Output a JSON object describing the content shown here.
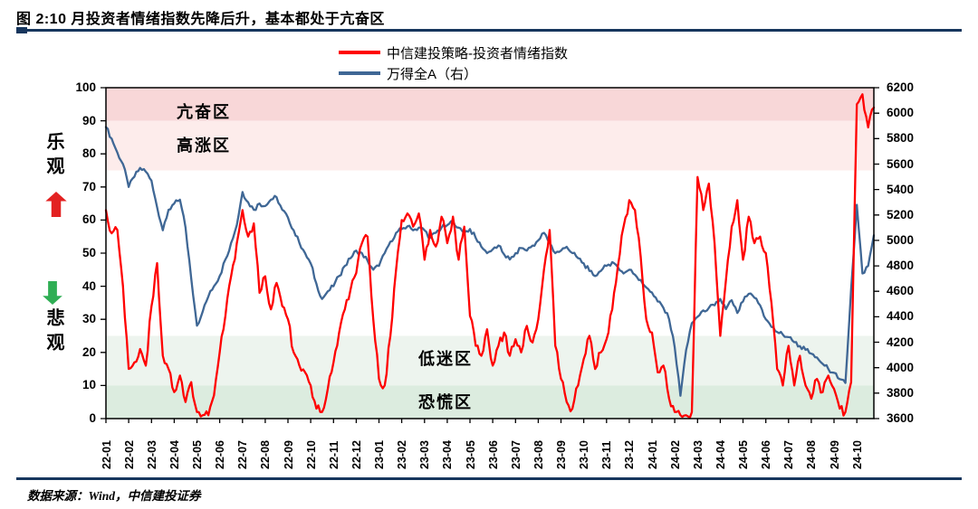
{
  "header": {
    "title": "图 2:10 月投资者情绪指数先降后升，基本都处于亢奋区"
  },
  "legend": [
    {
      "label": "中信建投策略-投资者情绪指数",
      "color": "#ff0000"
    },
    {
      "label": "万得全A（右）",
      "color": "#3f6795"
    }
  ],
  "side_labels": {
    "optimistic": "乐观",
    "pessimistic": "悲观"
  },
  "colors": {
    "rule": "#17365d",
    "optimistic_arrow": "#e32222",
    "pessimistic_arrow": "#2fae54",
    "axis": "#000000"
  },
  "footer": {
    "source": "数据来源：Wind，中信建投证券"
  },
  "chart_data": {
    "type": "line",
    "title": "图 2:10 月投资者情绪指数先降后升，基本都处于亢奋区",
    "points_per_month": 4,
    "legend_position": "top-center",
    "grid": false,
    "x_labels": [
      "22-01",
      "22-02",
      "22-03",
      "22-04",
      "22-05",
      "22-06",
      "22-07",
      "22-08",
      "22-09",
      "22-10",
      "22-11",
      "22-12",
      "23-01",
      "23-02",
      "23-03",
      "23-04",
      "23-05",
      "23-06",
      "23-07",
      "23-08",
      "23-09",
      "23-10",
      "23-11",
      "23-12",
      "24-01",
      "24-02",
      "24-03",
      "24-04",
      "24-05",
      "24-06",
      "24-07",
      "24-08",
      "24-09",
      "24-10"
    ],
    "y_left": {
      "min": 0,
      "max": 100,
      "step": 10,
      "ticks": [
        0,
        10,
        20,
        30,
        40,
        50,
        60,
        70,
        80,
        90,
        100
      ]
    },
    "y_right": {
      "min": 3600,
      "max": 6200,
      "step": 200,
      "ticks": [
        3600,
        3800,
        4000,
        4200,
        4400,
        4600,
        4800,
        5000,
        5200,
        5400,
        5600,
        5800,
        6000,
        6200
      ]
    },
    "zones": [
      {
        "label": "亢奋区",
        "from": 90,
        "to": 100,
        "color": "#f8d7d8"
      },
      {
        "label": "高涨区",
        "from": 75,
        "to": 90,
        "color": "#fdeceb"
      },
      {
        "label": "低迷区",
        "from": 10,
        "to": 25,
        "color": "#edf4ee"
      },
      {
        "label": "恐慌区",
        "from": 0,
        "to": 10,
        "color": "#dcecdf"
      }
    ],
    "series": [
      {
        "name": "中信建投策略-投资者情绪指数",
        "axis": "left",
        "color": "#ff0000",
        "values": [
          63,
          56,
          57,
          40,
          15,
          17,
          21,
          16,
          34,
          47,
          19,
          15,
          8,
          13,
          5,
          11,
          2,
          1,
          1,
          7,
          20,
          31,
          43,
          53,
          63,
          55,
          59,
          38,
          43,
          33,
          41,
          34,
          30,
          20,
          16,
          14,
          10,
          3,
          2,
          9,
          17,
          26,
          33,
          39,
          44,
          53,
          55,
          30,
          12,
          10,
          25,
          45,
          60,
          62,
          58,
          62,
          48,
          57,
          52,
          61,
          53,
          61,
          48,
          58,
          31,
          22,
          19,
          27,
          16,
          22,
          26,
          19,
          24,
          20,
          28,
          23,
          30,
          45,
          57,
          22,
          12,
          5,
          3,
          10,
          18,
          25,
          15,
          20,
          24,
          33,
          46,
          58,
          66,
          63,
          49,
          30,
          26,
          14,
          16,
          6,
          2,
          1,
          1,
          2,
          73,
          63,
          71,
          53,
          25,
          42,
          58,
          66,
          48,
          61,
          53,
          55,
          50,
          35,
          15,
          10,
          22,
          10,
          19,
          10,
          6,
          12,
          8,
          13,
          9,
          3,
          2,
          11,
          95,
          98,
          88,
          94
        ]
      },
      {
        "name": "万得全A（右）",
        "axis": "right",
        "color": "#3f6795",
        "values": [
          5890,
          5800,
          5690,
          5600,
          5420,
          5500,
          5570,
          5540,
          5470,
          5260,
          5080,
          5240,
          5290,
          5320,
          5100,
          4700,
          4330,
          4440,
          4560,
          4640,
          4720,
          4850,
          4980,
          5120,
          5380,
          5300,
          5240,
          5290,
          5270,
          5320,
          5340,
          5240,
          5180,
          5080,
          4980,
          4900,
          4820,
          4660,
          4540,
          4600,
          4640,
          4720,
          4800,
          4860,
          4920,
          4900,
          4840,
          4770,
          4800,
          4900,
          4990,
          5060,
          5090,
          5110,
          5080,
          5100,
          5080,
          5020,
          5060,
          5100,
          5120,
          5155,
          5100,
          5060,
          5090,
          5020,
          4950,
          4900,
          4930,
          4960,
          4890,
          4850,
          4900,
          4940,
          4920,
          4960,
          5000,
          5060,
          4980,
          4900,
          4920,
          4950,
          4900,
          4860,
          4820,
          4760,
          4720,
          4760,
          4800,
          4830,
          4790,
          4740,
          4770,
          4730,
          4690,
          4630,
          4590,
          4520,
          4470,
          4380,
          4160,
          3780,
          4140,
          4350,
          4400,
          4450,
          4470,
          4490,
          4540,
          4460,
          4530,
          4430,
          4520,
          4580,
          4550,
          4490,
          4380,
          4320,
          4280,
          4260,
          4240,
          4200,
          4170,
          4140,
          4110,
          4080,
          4030,
          3990,
          3960,
          3910,
          3880,
          4620,
          5280,
          4740,
          4800,
          5040
        ]
      }
    ]
  }
}
